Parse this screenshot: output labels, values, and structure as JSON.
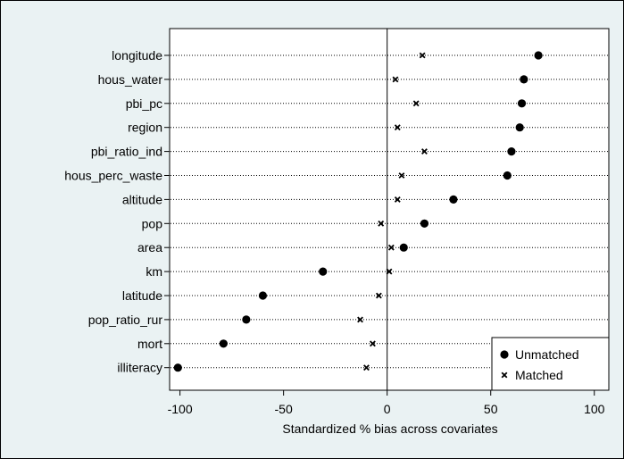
{
  "chart_data": {
    "type": "scatter",
    "title": "",
    "xlabel": "Standardized % bias across covariates",
    "ylabel": "",
    "xlim": [
      -105,
      107
    ],
    "xticks": [
      -100,
      -50,
      0,
      50,
      100
    ],
    "grid": "dotted horizontal lines at each covariate; vertical reference line at 0",
    "legend_position": "bottom-right",
    "categories": [
      "longitude",
      "hous_water",
      "pbi_pc",
      "region",
      "pbi_ratio_ind",
      "hous_perc_waste",
      "altitude",
      "pop",
      "area",
      "km",
      "latitude",
      "pop_ratio_rur",
      "mort",
      "illiteracy"
    ],
    "series": [
      {
        "name": "Unmatched",
        "marker": "filled-circle",
        "color": "#000000",
        "values": [
          73,
          66,
          65,
          64,
          60,
          58,
          32,
          18,
          8,
          -31,
          -60,
          -68,
          -79,
          -101
        ]
      },
      {
        "name": "Matched",
        "marker": "x",
        "color": "#000000",
        "values": [
          17,
          4,
          14,
          5,
          18,
          7,
          5,
          -3,
          2,
          1,
          -4,
          -13,
          -7,
          -10
        ]
      }
    ]
  },
  "colors": {
    "outer_background": "#eaf2f3",
    "plot_background": "#ffffff",
    "frame": "#000000"
  }
}
